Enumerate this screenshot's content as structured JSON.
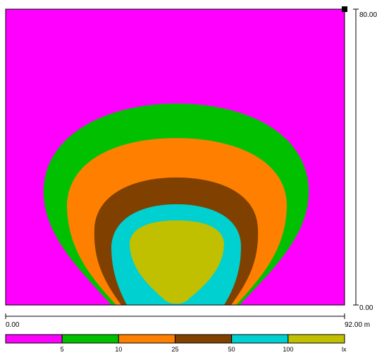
{
  "y_axis": {
    "max_label": "80.00",
    "min_label": "0.00"
  },
  "x_axis": {
    "min_label": "0.00",
    "max_label": "92.00 m"
  },
  "legend": {
    "unit": "lx",
    "items": [
      {
        "label": "",
        "color": "#ff00ff"
      },
      {
        "label": "5",
        "color": "#00c000"
      },
      {
        "label": "10",
        "color": "#ff8000"
      },
      {
        "label": "25",
        "color": "#804000"
      },
      {
        "label": "50",
        "color": "#00d0d0"
      },
      {
        "label": "100",
        "color": "#c0c000"
      }
    ]
  },
  "colors": {
    "background": "#ff00ff",
    "level_5": "#00c000",
    "level_10": "#ff8000",
    "level_25": "#804000",
    "level_50": "#00d0d0",
    "level_100": "#c0c000",
    "luminaire_marker": "#000000"
  }
}
